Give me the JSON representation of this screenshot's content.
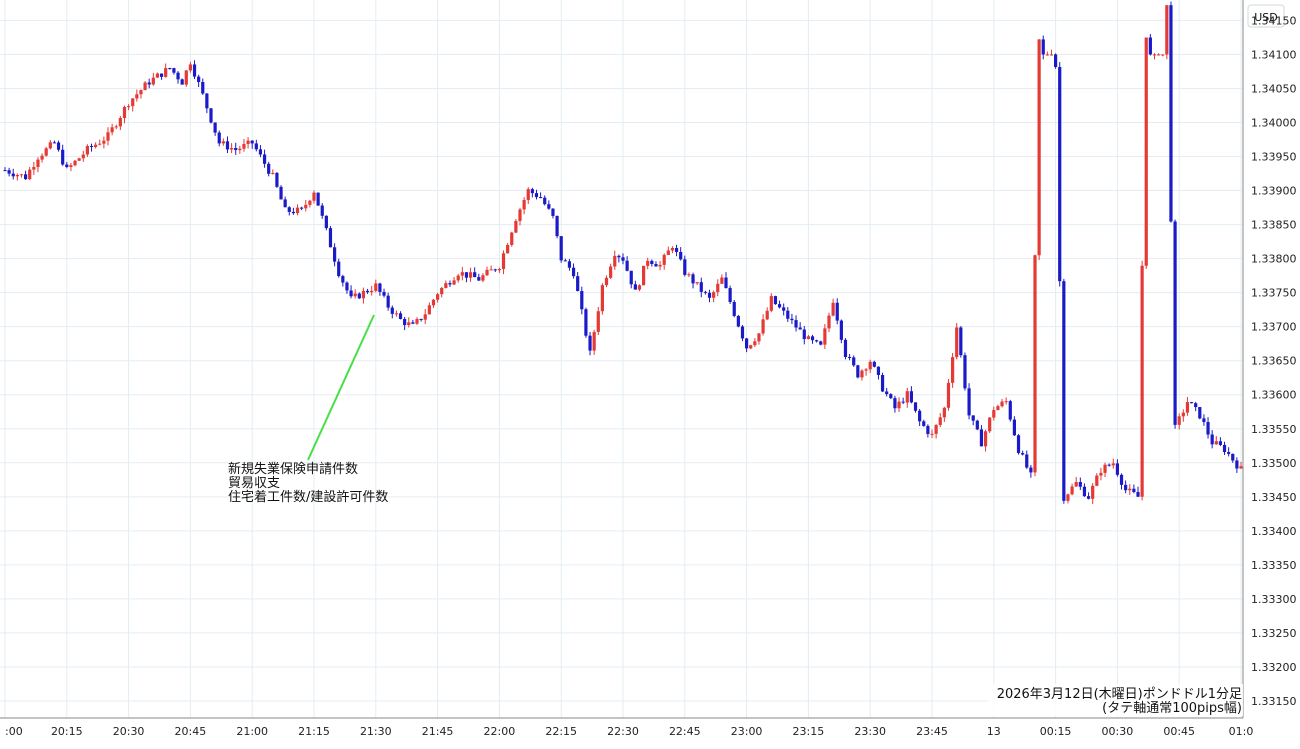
{
  "chart_data": {
    "type": "candlestick",
    "instrument_note_line1": "2026年3月12日(木曜日)ポンドドル1分足",
    "instrument_note_line2": "(タテ軸通常100pips幅)",
    "currency_label": "USD",
    "ylim": [
      1.3315,
      1.3418
    ],
    "y_ticks": [
      "1.34150",
      "1.34100",
      "1.34050",
      "1.34000",
      "1.33950",
      "1.33900",
      "1.33850",
      "1.33800",
      "1.33750",
      "1.33700",
      "1.33650",
      "1.33600",
      "1.33550",
      "1.33500",
      "1.33450",
      "1.33400",
      "1.33350",
      "1.33300",
      "1.33250",
      "1.33200",
      "1.33150"
    ],
    "x_ticks": [
      ":00",
      "20:15",
      "20:30",
      "20:45",
      "21:00",
      "21:15",
      "21:30",
      "21:45",
      "22:00",
      "22:15",
      "22:30",
      "22:45",
      "23:00",
      "23:15",
      "23:30",
      "23:45",
      "13",
      "00:15",
      "00:30",
      "00:45",
      "01:0"
    ],
    "annotation": {
      "lines": [
        "新規失業保険申請件数",
        "貿易収支",
        "住宅着工件数/建設許可件数"
      ],
      "time": "21:30",
      "price": 1.3374
    },
    "colors": {
      "up": "#e53935",
      "down": "#1a1ac8",
      "grid": "#e3edf3",
      "arrow": "#46e046",
      "axis": "#555555"
    },
    "grid": true,
    "candles_close_path": [
      [
        "20:00",
        1.3393
      ],
      [
        "20:05",
        1.3392
      ],
      [
        "20:08",
        1.3395
      ],
      [
        "20:12",
        1.3397
      ],
      [
        "20:15",
        1.3393
      ],
      [
        "20:20",
        1.3396
      ],
      [
        "20:25",
        1.3398
      ],
      [
        "20:30",
        1.3403
      ],
      [
        "20:35",
        1.3406
      ],
      [
        "20:40",
        1.3408
      ],
      [
        "20:43",
        1.3406
      ],
      [
        "20:45",
        1.3409
      ],
      [
        "20:48",
        1.3404
      ],
      [
        "20:52",
        1.3397
      ],
      [
        "20:56",
        1.3396
      ],
      [
        "21:00",
        1.3397
      ],
      [
        "21:05",
        1.3392
      ],
      [
        "21:08",
        1.3387
      ],
      [
        "21:12",
        1.3387
      ],
      [
        "21:15",
        1.339
      ],
      [
        "21:18",
        1.3384
      ],
      [
        "21:21",
        1.3378
      ],
      [
        "21:24",
        1.3374
      ],
      [
        "21:27",
        1.3375
      ],
      [
        "21:30",
        1.3376
      ],
      [
        "21:33",
        1.3373
      ],
      [
        "21:36",
        1.3371
      ],
      [
        "21:39",
        1.337
      ],
      [
        "21:42",
        1.3372
      ],
      [
        "21:45",
        1.3375
      ],
      [
        "21:50",
        1.3378
      ],
      [
        "21:55",
        1.3377
      ],
      [
        "22:00",
        1.3379
      ],
      [
        "22:04",
        1.3386
      ],
      [
        "22:07",
        1.339
      ],
      [
        "22:10",
        1.3389
      ],
      [
        "22:13",
        1.3386
      ],
      [
        "22:15",
        1.338
      ],
      [
        "22:18",
        1.3378
      ],
      [
        "22:20",
        1.3372
      ],
      [
        "22:22",
        1.3366
      ],
      [
        "22:25",
        1.3376
      ],
      [
        "22:28",
        1.3381
      ],
      [
        "22:30",
        1.338
      ],
      [
        "22:33",
        1.3375
      ],
      [
        "22:36",
        1.338
      ],
      [
        "22:39",
        1.3379
      ],
      [
        "22:42",
        1.3382
      ],
      [
        "22:45",
        1.3378
      ],
      [
        "22:48",
        1.3376
      ],
      [
        "22:51",
        1.3374
      ],
      [
        "22:54",
        1.3377
      ],
      [
        "22:57",
        1.3372
      ],
      [
        "23:00",
        1.3367
      ],
      [
        "23:03",
        1.3369
      ],
      [
        "23:06",
        1.3374
      ],
      [
        "23:09",
        1.3372
      ],
      [
        "23:12",
        1.337
      ],
      [
        "23:15",
        1.3368
      ],
      [
        "23:18",
        1.3367
      ],
      [
        "23:21",
        1.3374
      ],
      [
        "23:24",
        1.3366
      ],
      [
        "23:27",
        1.3363
      ],
      [
        "23:30",
        1.3365
      ],
      [
        "23:33",
        1.3361
      ],
      [
        "23:36",
        1.3358
      ],
      [
        "23:39",
        1.336
      ],
      [
        "23:42",
        1.3356
      ],
      [
        "23:45",
        1.3354
      ],
      [
        "23:48",
        1.3358
      ],
      [
        "23:51",
        1.337
      ],
      [
        "23:54",
        1.3357
      ],
      [
        "23:57",
        1.3353
      ],
      [
        "00:00",
        1.3358
      ],
      [
        "00:03",
        1.3359
      ],
      [
        "00:06",
        1.3352
      ],
      [
        "00:09",
        1.3348
      ],
      [
        "00:12",
        1.3444
      ],
      [
        "00:14",
        1.344
      ],
      [
        "00:17",
        1.3345
      ],
      [
        "00:20",
        1.3347
      ],
      [
        "00:23",
        1.3345
      ],
      [
        "00:26",
        1.3349
      ],
      [
        "00:29",
        1.335
      ],
      [
        "00:32",
        1.3346
      ],
      [
        "00:35",
        1.3345
      ],
      [
        "00:38",
        1.3447
      ],
      [
        "00:41",
        1.3448
      ],
      [
        "00:44",
        1.3355
      ],
      [
        "00:47",
        1.3359
      ],
      [
        "00:50",
        1.3357
      ],
      [
        "00:53",
        1.3353
      ],
      [
        "00:56",
        1.3352
      ],
      [
        "01:00",
        1.3349
      ]
    ]
  }
}
